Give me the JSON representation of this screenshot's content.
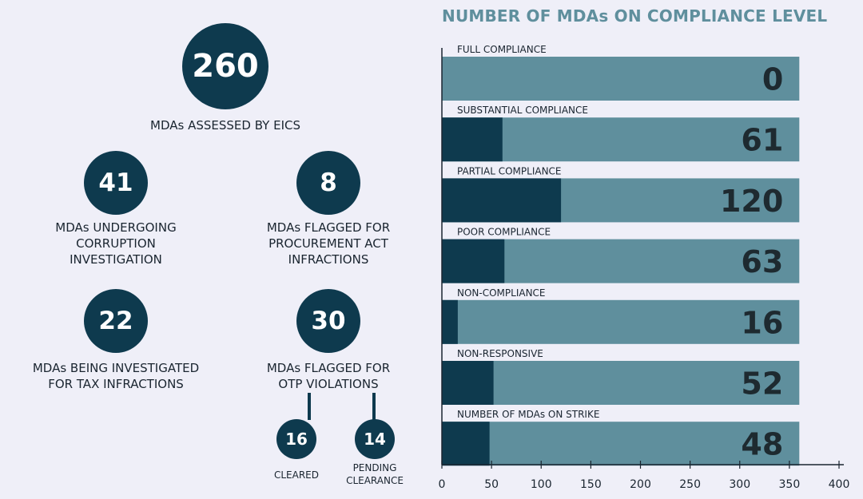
{
  "stats": {
    "assessed": {
      "value": "260",
      "label": "MDAs ASSESSED BY EICS"
    },
    "corruption": {
      "value": "41",
      "label": "MDAs UNDERGOING\nCORRUPTION\nINVESTIGATION"
    },
    "procurement": {
      "value": "8",
      "label": "MDAs FLAGGED FOR\nPROCUREMENT ACT\nINFRACTIONS"
    },
    "tax": {
      "value": "22",
      "label": "MDAs BEING INVESTIGATED\nFOR TAX INFRACTIONS"
    },
    "otp": {
      "value": "30",
      "label": "MDAs FLAGGED FOR\nOTP VIOLATIONS"
    },
    "cleared": {
      "value": "16",
      "label": "CLEARED"
    },
    "pending": {
      "value": "14",
      "label": "PENDING\nCLEARANCE"
    }
  },
  "colors": {
    "dark": "#0e3a4e",
    "light": "#5f8f9d",
    "title": "#5f8f9d",
    "background": "#efeff8"
  },
  "chart_data": {
    "type": "bar",
    "orientation": "horizontal",
    "title": "NUMBER OF MDAs ON COMPLIANCE LEVEL",
    "categories": [
      "FULL COMPLIANCE",
      "SUBSTANTIAL COMPLIANCE",
      "PARTIAL COMPLIANCE",
      "POOR COMPLIANCE",
      "NON-COMPLIANCE",
      "NON-RESPONSIVE",
      "NUMBER OF MDAs ON STRIKE"
    ],
    "series": [
      {
        "values": [
          0,
          61,
          120,
          63,
          16,
          52,
          48
        ]
      },
      {
        "values": [
          360,
          360,
          360,
          360,
          360,
          360,
          360
        ]
      }
    ],
    "data_labels": [
      "0",
      "61",
      "120",
      "63",
      "16",
      "52",
      "48"
    ],
    "xlim": [
      0,
      400
    ],
    "xticks": [
      0,
      50,
      100,
      150,
      200,
      250,
      300,
      350,
      400
    ],
    "grid": false,
    "legend": "none"
  }
}
